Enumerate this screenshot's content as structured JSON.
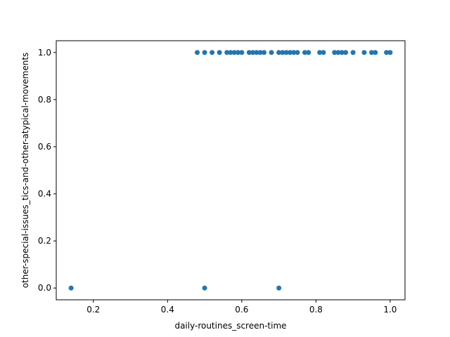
{
  "chart_data": {
    "type": "scatter",
    "title": "",
    "xlabel": "daily-routines_screen-time",
    "ylabel": "other-special-issues_tics-and-other-atypical-movements",
    "xlim": [
      0.1,
      1.04
    ],
    "ylim": [
      -0.05,
      1.05
    ],
    "xticks": [
      0.2,
      0.4,
      0.6,
      0.8,
      1.0
    ],
    "yticks": [
      0.0,
      0.2,
      0.4,
      0.6,
      0.8,
      1.0
    ],
    "xtick_labels": [
      "0.2",
      "0.4",
      "0.6",
      "0.8",
      "1.0"
    ],
    "ytick_labels": [
      "0.0",
      "0.2",
      "0.4",
      "0.6",
      "0.8",
      "1.0"
    ],
    "grid": false,
    "marker_color": "#1f77b4",
    "points": [
      {
        "x": 0.14,
        "y": 0
      },
      {
        "x": 0.5,
        "y": 0
      },
      {
        "x": 0.7,
        "y": 0
      },
      {
        "x": 0.48,
        "y": 1
      },
      {
        "x": 0.5,
        "y": 1
      },
      {
        "x": 0.52,
        "y": 1
      },
      {
        "x": 0.54,
        "y": 1
      },
      {
        "x": 0.56,
        "y": 1
      },
      {
        "x": 0.57,
        "y": 1
      },
      {
        "x": 0.58,
        "y": 1
      },
      {
        "x": 0.59,
        "y": 1
      },
      {
        "x": 0.6,
        "y": 1
      },
      {
        "x": 0.62,
        "y": 1
      },
      {
        "x": 0.63,
        "y": 1
      },
      {
        "x": 0.64,
        "y": 1
      },
      {
        "x": 0.65,
        "y": 1
      },
      {
        "x": 0.66,
        "y": 1
      },
      {
        "x": 0.68,
        "y": 1
      },
      {
        "x": 0.7,
        "y": 1
      },
      {
        "x": 0.71,
        "y": 1
      },
      {
        "x": 0.72,
        "y": 1
      },
      {
        "x": 0.73,
        "y": 1
      },
      {
        "x": 0.74,
        "y": 1
      },
      {
        "x": 0.75,
        "y": 1
      },
      {
        "x": 0.77,
        "y": 1
      },
      {
        "x": 0.78,
        "y": 1
      },
      {
        "x": 0.81,
        "y": 1
      },
      {
        "x": 0.82,
        "y": 1
      },
      {
        "x": 0.85,
        "y": 1
      },
      {
        "x": 0.86,
        "y": 1
      },
      {
        "x": 0.87,
        "y": 1
      },
      {
        "x": 0.88,
        "y": 1
      },
      {
        "x": 0.9,
        "y": 1
      },
      {
        "x": 0.93,
        "y": 1
      },
      {
        "x": 0.95,
        "y": 1
      },
      {
        "x": 0.96,
        "y": 1
      },
      {
        "x": 0.99,
        "y": 1
      },
      {
        "x": 1.0,
        "y": 1
      }
    ]
  }
}
